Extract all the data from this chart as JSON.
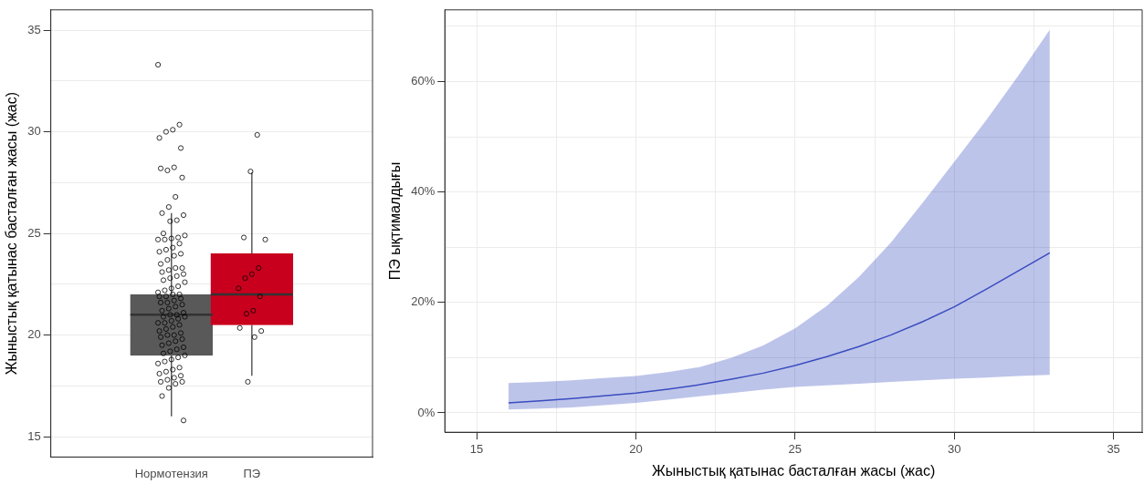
{
  "chart_data": [
    {
      "type": "box",
      "ylabel": "Жыныстық қатынас басталған жасы (жас)",
      "categories": [
        "Нормотензия",
        "ПЭ"
      ],
      "colors": [
        "#595959",
        "#c8001e"
      ],
      "boxes": [
        {
          "low": 16,
          "q1": 19,
          "median": 21,
          "q3": 22,
          "high": 26
        },
        {
          "low": 18,
          "q1": 20.5,
          "median": 22,
          "q3": 24,
          "high": 28
        }
      ],
      "series": [
        {
          "type": "scatter",
          "color": "#000000",
          "x": [
            "Нормотензия",
            "Нормотензия",
            "Нормотензия",
            "Нормотензия",
            "Нормотензия",
            "Нормотензия",
            "Нормотензия",
            "Нормотензия",
            "Нормотензия",
            "Нормотензия",
            "Нормотензия",
            "Нормотензия",
            "Нормотензия",
            "Нормотензия",
            "Нормотензия",
            "Нормотензия",
            "Нормотензия",
            "Нормотензия",
            "Нормотензия",
            "Нормотензия",
            "Нормотензия",
            "Нормотензия",
            "Нормотензия",
            "Нормотензия",
            "Нормотензия",
            "Нормотензия",
            "Нормотензия",
            "Нормотензия",
            "Нормотензия",
            "Нормотензия",
            "Нормотензия",
            "Нормотензия",
            "Нормотензия",
            "Нормотензия",
            "Нормотензия",
            "Нормотензия",
            "Нормотензия",
            "Нормотензия",
            "Нормотензия",
            "Нормотензия",
            "Нормотензия",
            "Нормотензия",
            "Нормотензия",
            "Нормотензия",
            "Нормотензия",
            "Нормотензия",
            "Нормотензия",
            "Нормотензия",
            "Нормотензия",
            "Нормотензия",
            "Нормотензия",
            "Нормотензия",
            "Нормотензия",
            "Нормотензия",
            "Нормотензия",
            "Нормотензия",
            "Нормотензия",
            "Нормотензия",
            "Нормотензия",
            "Нормотензия",
            "Нормотензия",
            "Нормотензия",
            "Нормотензия",
            "Нормотензия",
            "Нормотензия",
            "Нормотензия",
            "Нормотензия",
            "Нормотензия",
            "Нормотензия",
            "Нормотензия",
            "Нормотензия",
            "Нормотензия",
            "Нормотензия",
            "Нормотензия",
            "Нормотензия",
            "Нормотензия",
            "Нормотензия",
            "Нормотензия",
            "Нормотензия",
            "Нормотензия",
            "Нормотензия",
            "Нормотензия",
            "Нормотензия",
            "Нормотензия",
            "Нормотензия",
            "Нормотензия",
            "Нормотензия",
            "Нормотензия",
            "Нормотензия",
            "Нормотензия",
            "Нормотензия",
            "Нормотензия",
            "Нормотензия",
            "Нормотензия",
            "Нормотензия",
            "Нормотензия",
            "Нормотензия",
            "Нормотензия",
            "ПЭ",
            "ПЭ",
            "ПЭ",
            "ПЭ",
            "ПЭ",
            "ПЭ",
            "ПЭ",
            "ПЭ",
            "ПЭ",
            "ПЭ",
            "ПЭ",
            "ПЭ",
            "ПЭ",
            "ПЭ",
            "ПЭ"
          ],
          "values": [
            33.3,
            30.35,
            30.1,
            30.0,
            29.7,
            29.2,
            28.25,
            28.1,
            28.2,
            27.75,
            26.8,
            26.3,
            26.0,
            25.9,
            25.65,
            25.6,
            25.0,
            24.9,
            24.8,
            24.75,
            24.7,
            24.7,
            24.5,
            24.3,
            24.2,
            24.1,
            24.0,
            23.9,
            23.7,
            23.5,
            23.3,
            23.3,
            23.2,
            23.1,
            23.0,
            22.9,
            22.8,
            22.7,
            22.6,
            22.4,
            22.3,
            22.2,
            22.1,
            22.0,
            22.0,
            21.9,
            21.9,
            21.8,
            21.7,
            21.6,
            21.6,
            21.5,
            21.4,
            21.3,
            21.2,
            21.1,
            21.0,
            21.0,
            20.9,
            20.9,
            20.8,
            20.7,
            20.6,
            20.6,
            20.5,
            20.4,
            20.3,
            20.2,
            20.1,
            20.0,
            20.0,
            19.9,
            19.8,
            19.7,
            19.6,
            19.5,
            19.4,
            19.3,
            19.2,
            19.1,
            19.0,
            18.9,
            18.8,
            18.7,
            18.6,
            18.4,
            18.3,
            18.2,
            18.1,
            18.0,
            17.9,
            17.8,
            17.7,
            17.7,
            17.6,
            17.4,
            17.0,
            15.8,
            29.85,
            28.05,
            24.8,
            24.7,
            23.3,
            23.0,
            22.8,
            22.3,
            21.9,
            21.2,
            21.05,
            20.35,
            20.2,
            19.9,
            17.7
          ]
        }
      ],
      "ylim": [
        14,
        36
      ],
      "yticks": [
        15,
        {
          "value": 17.5,
          "label": null
        },
        20,
        {
          "value": 22.5,
          "label": null
        },
        25,
        {
          "value": 27.5,
          "label": null
        },
        30,
        {
          "value": 32.5,
          "label": null
        },
        35
      ],
      "grid": "y",
      "marker": "circle"
    },
    {
      "type": "line",
      "xlabel": "Жыныстық қатынас басталған жасы (жас)",
      "ylabel": "ПЭ ықтималдығы",
      "x": [
        16,
        17,
        18,
        19,
        20,
        21,
        22,
        23,
        24,
        25,
        26,
        27,
        28,
        29,
        30,
        31,
        32,
        33
      ],
      "series": [
        {
          "color": "#3a4dbf",
          "values": [
            1.8,
            2.2,
            2.6,
            3.1,
            3.6,
            4.3,
            5.1,
            6.1,
            7.2,
            8.6,
            10.2,
            12.0,
            14.1,
            16.5,
            19.2,
            22.4,
            25.7,
            29.0
          ],
          "lower": [
            0.6,
            0.8,
            1.0,
            1.4,
            1.8,
            2.4,
            3.0,
            3.6,
            4.2,
            4.7,
            5.0,
            5.3,
            5.6,
            5.9,
            6.2,
            6.4,
            6.7,
            6.9
          ],
          "upper": [
            5.4,
            5.6,
            5.9,
            6.3,
            6.7,
            7.4,
            8.3,
            10.0,
            12.2,
            15.3,
            19.4,
            24.6,
            30.8,
            38.0,
            45.5,
            53.0,
            61.0,
            69.4
          ]
        }
      ],
      "xlim": [
        14,
        35.9
      ],
      "xticks": [
        15,
        {
          "value": 17.5,
          "label": null
        },
        20,
        {
          "value": 22.5,
          "label": null
        },
        25,
        {
          "value": 27.5,
          "label": null
        },
        30,
        {
          "value": 32.5,
          "label": null
        },
        35
      ],
      "ylim": [
        -3.5,
        73
      ],
      "yticks": [
        {
          "value": 0,
          "label": "0%"
        },
        {
          "value": 10,
          "label": null
        },
        {
          "value": 20,
          "label": "20%"
        },
        {
          "value": 30,
          "label": null
        },
        {
          "value": 40,
          "label": "40%"
        },
        {
          "value": 50,
          "label": null
        },
        {
          "value": 60,
          "label": "60%"
        },
        {
          "value": 70,
          "label": null
        }
      ],
      "grid": true,
      "marker": "none"
    }
  ]
}
